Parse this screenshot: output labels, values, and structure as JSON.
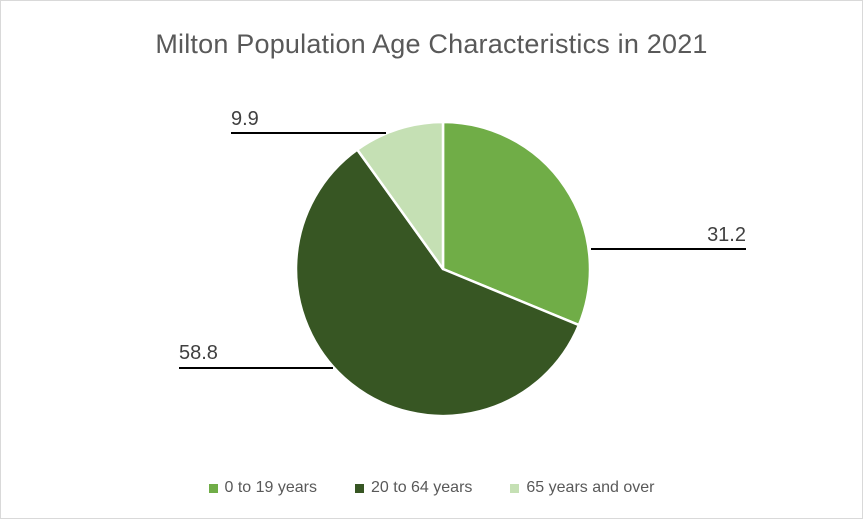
{
  "chart_data": {
    "type": "pie",
    "title": "Milton Population Age Characteristics in 2021",
    "categories": [
      "0 to 19 years",
      "20 to 64 years",
      "65 years and over"
    ],
    "values": [
      31.2,
      58.8,
      9.9
    ],
    "data_labels": [
      "31.2",
      "58.8",
      "9.9"
    ],
    "colors": [
      "#70ad47",
      "#375623",
      "#c5e0b4"
    ],
    "legend_position": "bottom",
    "start_angle_deg": 0,
    "direction": "clockwise"
  }
}
